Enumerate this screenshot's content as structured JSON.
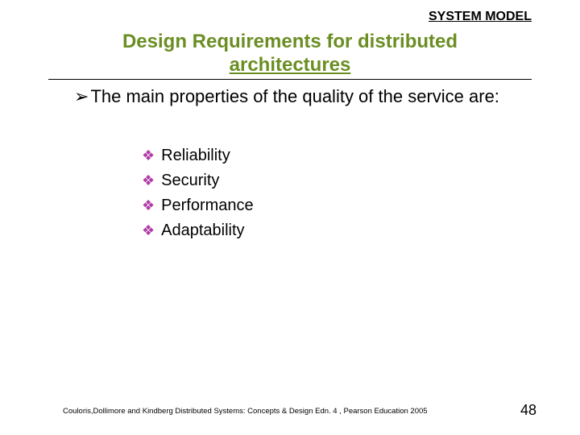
{
  "colors": {
    "title_color": "#6b8e23",
    "bullet_color": "#b03ba8",
    "text_color": "#000000",
    "background": "#ffffff"
  },
  "typography": {
    "header_fontsize": 16,
    "title_fontsize": 24,
    "body_fontsize": 22,
    "sublist_fontsize": 20,
    "footer_fontsize": 9.5,
    "pagenum_fontsize": 18
  },
  "header": {
    "label": "SYSTEM MODEL"
  },
  "title": {
    "line1": "Design Requirements for distributed",
    "line2": "architectures"
  },
  "mainPoint": {
    "bullet": "➢",
    "text": "The main properties of the quality of the service are:"
  },
  "subItems": {
    "bullet": "❖",
    "items": [
      {
        "label": "Reliability"
      },
      {
        "label": "Security"
      },
      {
        "label": "Performance"
      },
      {
        "label": "Adaptability"
      }
    ]
  },
  "footer": {
    "citation": "Couloris,Dollimore and Kindberg  Distributed Systems: Concepts & Design  Edn. 4 , Pearson Education 2005"
  },
  "pageNumber": "48"
}
